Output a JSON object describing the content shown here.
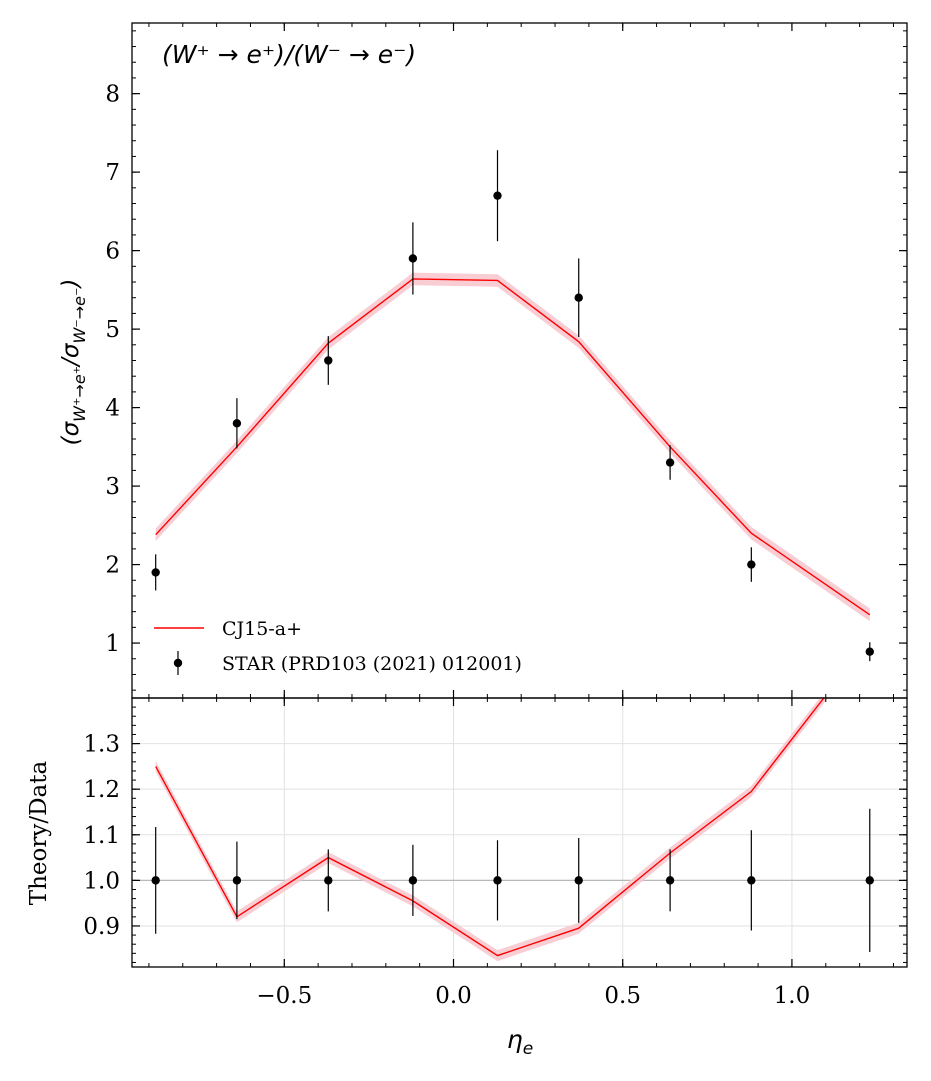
{
  "chart_data": [
    {
      "type": "line",
      "panel": "main",
      "annotation": "(W⁺ → e⁺)/(W⁻ → e⁻)",
      "ylabel": "(σ_{W⁺→e⁺}/σ_{W⁻→e⁻})",
      "xlim": [
        -0.95,
        1.34
      ],
      "ylim": [
        0.3,
        8.9
      ],
      "yticks": [
        1,
        2,
        3,
        4,
        5,
        6,
        7,
        8
      ],
      "legend_position": "lower-left",
      "series": [
        {
          "name": "CJ15-a+",
          "kind": "line-band",
          "color": "#ff0000",
          "band_color": "#f7c6cc",
          "x": [
            -0.88,
            -0.64,
            -0.37,
            -0.12,
            0.13,
            0.37,
            0.64,
            0.88,
            1.23
          ],
          "y": [
            2.38,
            3.5,
            4.82,
            5.64,
            5.62,
            4.84,
            3.5,
            2.4,
            1.36
          ],
          "band_halfwidth": 0.08
        },
        {
          "name": "STAR (PRD103 (2021) 012001)",
          "kind": "errorbar",
          "color": "#000000",
          "x": [
            -0.88,
            -0.64,
            -0.37,
            -0.12,
            0.13,
            0.37,
            0.64,
            0.88,
            1.23
          ],
          "y": [
            1.9,
            3.8,
            4.6,
            5.9,
            6.7,
            5.4,
            3.3,
            2.0,
            0.89
          ],
          "yerr": [
            0.23,
            0.32,
            0.31,
            0.46,
            0.58,
            0.5,
            0.22,
            0.22,
            0.12
          ]
        }
      ]
    },
    {
      "type": "line",
      "panel": "ratio",
      "xlabel": "η_e",
      "ylabel": "Theory/Data",
      "xlim": [
        -0.95,
        1.34
      ],
      "ylim": [
        0.81,
        1.4
      ],
      "xticks": [
        -0.5,
        0.0,
        0.5,
        1.0
      ],
      "xtick_labels": [
        "−0.5",
        "0.0",
        "0.5",
        "1.0"
      ],
      "yticks": [
        0.9,
        1.0,
        1.1,
        1.2,
        1.3
      ],
      "ytick_labels": [
        "0.9",
        "1.0",
        "1.1",
        "1.2",
        "1.3"
      ],
      "grid": true,
      "reference_line": 1.0,
      "series": [
        {
          "name": "CJ15-a+",
          "kind": "line-band",
          "color": "#ff0000",
          "band_color": "#f7c6cc",
          "x": [
            -0.88,
            -0.64,
            -0.37,
            -0.12,
            0.13,
            0.37,
            0.64,
            0.88,
            1.23
          ],
          "y": [
            1.25,
            0.92,
            1.05,
            0.955,
            0.835,
            0.895,
            1.06,
            1.195,
            1.53
          ],
          "band_halfwidth": 0.012
        },
        {
          "name": "STAR (PRD103 (2021) 012001)",
          "kind": "errorbar",
          "color": "#000000",
          "x": [
            -0.88,
            -0.64,
            -0.37,
            -0.12,
            0.13,
            0.37,
            0.64,
            0.88,
            1.23
          ],
          "y": [
            1.0,
            1.0,
            1.0,
            1.0,
            1.0,
            1.0,
            1.0,
            1.0,
            1.0
          ],
          "yerr": [
            0.117,
            0.085,
            0.068,
            0.078,
            0.088,
            0.093,
            0.068,
            0.11,
            0.157
          ]
        }
      ]
    }
  ]
}
